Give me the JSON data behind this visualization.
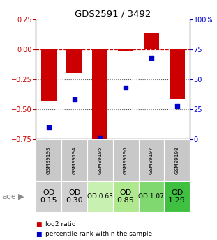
{
  "title": "GDS2591 / 3492",
  "samples": [
    "GSM99193",
    "GSM99194",
    "GSM99195",
    "GSM99196",
    "GSM99197",
    "GSM99198"
  ],
  "log2_ratio": [
    -0.43,
    -0.2,
    -0.75,
    -0.02,
    0.13,
    -0.42
  ],
  "percentile_rank": [
    10,
    33,
    1,
    43,
    68,
    28
  ],
  "bar_color": "#cc0000",
  "dot_color": "#0000cc",
  "ylim_left": [
    -0.75,
    0.25
  ],
  "ylim_right": [
    0,
    100
  ],
  "yticks_left": [
    0.25,
    0.0,
    -0.25,
    -0.5,
    -0.75
  ],
  "yticks_right": [
    100,
    75,
    50,
    25,
    0
  ],
  "hline_color": "#cc0000",
  "dotted_line_color": "#555555",
  "age_labels": [
    "OD\n0.15",
    "OD\n0.30",
    "OD 0.63",
    "OD\n0.85",
    "OD 1.07",
    "OD\n1.29"
  ],
  "age_bg_colors": [
    "#d0d0d0",
    "#d0d0d0",
    "#c8f0b0",
    "#b0e890",
    "#80d870",
    "#40c040"
  ],
  "age_font_sizes": [
    8,
    8,
    6.5,
    8,
    6.5,
    8
  ],
  "sample_bg_color": "#c8c8c8",
  "legend_log2_color": "#cc0000",
  "legend_pct_color": "#0000cc",
  "bg_color": "#ffffff"
}
